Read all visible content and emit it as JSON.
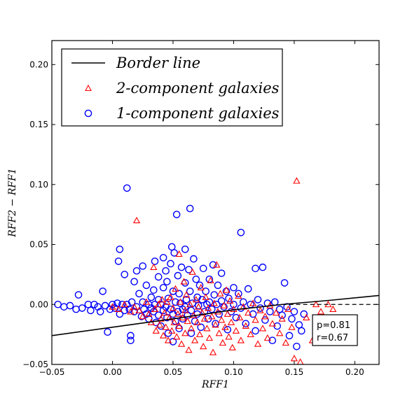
{
  "chart_data": {
    "type": "scatter",
    "xlabel": "RFF1",
    "ylabel": "RFF2 − RFF1",
    "xlim": [
      -0.05,
      0.22
    ],
    "ylim": [
      -0.05,
      0.22
    ],
    "xticks": [
      "−0.05",
      "0.00",
      "0.05",
      "0.10",
      "0.15",
      "0.20"
    ],
    "xtick_values": [
      -0.05,
      0.0,
      0.05,
      0.1,
      0.15,
      0.2
    ],
    "yticks": [
      "−0.05",
      "0.00",
      "0.05",
      "0.10",
      "0.15",
      "0.20"
    ],
    "ytick_values": [
      -0.05,
      0.0,
      0.05,
      0.1,
      0.15,
      0.2
    ],
    "grid": false,
    "legend_position": "top-left",
    "legend": [
      {
        "label": "Border line",
        "marker": "line",
        "color": "#000000"
      },
      {
        "label": "2-component galaxies",
        "marker": "triangle",
        "color": "#ff0000"
      },
      {
        "label": "1-component galaxies",
        "marker": "circle",
        "color": "#0000ff"
      }
    ],
    "border_line": {
      "color": "#000000",
      "x": [
        -0.05,
        0.0,
        0.05,
        0.1,
        0.14,
        0.18,
        0.22
      ],
      "y": [
        -0.026,
        -0.019,
        -0.012,
        -0.0045,
        0.0,
        0.0035,
        0.0075
      ]
    },
    "dashed_line": {
      "color": "#000000",
      "x": [
        0.14,
        0.22
      ],
      "y": [
        0.0,
        0.0
      ]
    },
    "series": [
      {
        "name": "1-component galaxies",
        "marker": "circle",
        "color": "#0000ff",
        "points": [
          [
            -0.045,
            0.0
          ],
          [
            -0.04,
            -0.002
          ],
          [
            -0.035,
            -0.001
          ],
          [
            -0.03,
            -0.004
          ],
          [
            -0.028,
            0.008
          ],
          [
            -0.025,
            -0.003
          ],
          [
            -0.02,
            0.0
          ],
          [
            -0.018,
            -0.005
          ],
          [
            -0.015,
            0.0
          ],
          [
            -0.012,
            -0.002
          ],
          [
            -0.01,
            -0.006
          ],
          [
            -0.008,
            0.011
          ],
          [
            -0.006,
            -0.001
          ],
          [
            -0.004,
            -0.023
          ],
          [
            -0.002,
            -0.004
          ],
          [
            0.0,
            0.0
          ],
          [
            0.002,
            -0.003
          ],
          [
            0.004,
            0.001
          ],
          [
            0.005,
            0.036
          ],
          [
            0.006,
            0.046
          ],
          [
            0.006,
            -0.008
          ],
          [
            0.008,
            0.0
          ],
          [
            0.01,
            0.025
          ],
          [
            0.01,
            -0.005
          ],
          [
            0.012,
            0.097
          ],
          [
            0.012,
            0.0
          ],
          [
            0.014,
            -0.004
          ],
          [
            0.015,
            -0.03
          ],
          [
            0.015,
            -0.026
          ],
          [
            0.016,
            0.002
          ],
          [
            0.018,
            0.019
          ],
          [
            0.018,
            -0.006
          ],
          [
            0.02,
            0.028
          ],
          [
            0.02,
            -0.002
          ],
          [
            0.022,
            0.009
          ],
          [
            0.024,
            -0.01
          ],
          [
            0.025,
            0.032
          ],
          [
            0.025,
            0.002
          ],
          [
            0.026,
            -0.004
          ],
          [
            0.028,
            0.016
          ],
          [
            0.028,
            -0.008
          ],
          [
            0.03,
            0.0
          ],
          [
            0.03,
            -0.012
          ],
          [
            0.032,
            0.006
          ],
          [
            0.032,
            -0.003
          ],
          [
            0.034,
            0.012
          ],
          [
            0.034,
            -0.006
          ],
          [
            0.035,
            0.036
          ],
          [
            0.035,
            0.0
          ],
          [
            0.036,
            -0.015
          ],
          [
            0.038,
            0.023
          ],
          [
            0.038,
            0.004
          ],
          [
            0.038,
            -0.009
          ],
          [
            0.04,
            0.0
          ],
          [
            0.04,
            -0.018
          ],
          [
            0.042,
            0.039
          ],
          [
            0.042,
            0.014
          ],
          [
            0.042,
            -0.005
          ],
          [
            0.044,
            0.028
          ],
          [
            0.044,
            -0.002
          ],
          [
            0.045,
            0.019
          ],
          [
            0.045,
            -0.011
          ],
          [
            0.046,
            0.005
          ],
          [
            0.046,
            -0.024
          ],
          [
            0.048,
            0.034
          ],
          [
            0.048,
            -0.004
          ],
          [
            0.049,
            0.048
          ],
          [
            0.05,
            0.011
          ],
          [
            0.05,
            -0.008
          ],
          [
            0.05,
            -0.031
          ],
          [
            0.051,
            0.043
          ],
          [
            0.052,
            0.002
          ],
          [
            0.052,
            -0.014
          ],
          [
            0.053,
            0.075
          ],
          [
            0.054,
            0.024
          ],
          [
            0.054,
            -0.006
          ],
          [
            0.055,
            0.009
          ],
          [
            0.055,
            -0.02
          ],
          [
            0.056,
            0.001
          ],
          [
            0.057,
            0.031
          ],
          [
            0.058,
            -0.004
          ],
          [
            0.058,
            -0.012
          ],
          [
            0.06,
            0.046
          ],
          [
            0.06,
            0.018
          ],
          [
            0.06,
            -0.002
          ],
          [
            0.061,
            0.004
          ],
          [
            0.062,
            -0.009
          ],
          [
            0.063,
            0.029
          ],
          [
            0.064,
            0.08
          ],
          [
            0.064,
            0.011
          ],
          [
            0.065,
            -0.005
          ],
          [
            0.065,
            -0.024
          ],
          [
            0.066,
            0.001
          ],
          [
            0.067,
            0.038
          ],
          [
            0.068,
            -0.014
          ],
          [
            0.069,
            0.021
          ],
          [
            0.07,
            0.006
          ],
          [
            0.07,
            -0.008
          ],
          [
            0.071,
            -0.001
          ],
          [
            0.072,
            0.016
          ],
          [
            0.073,
            -0.019
          ],
          [
            0.074,
            0.004
          ],
          [
            0.075,
            0.03
          ],
          [
            0.076,
            -0.006
          ],
          [
            0.077,
            0.011
          ],
          [
            0.078,
            0.0
          ],
          [
            0.079,
            -0.012
          ],
          [
            0.08,
            0.021
          ],
          [
            0.08,
            0.002
          ],
          [
            0.082,
            -0.004
          ],
          [
            0.083,
            0.033
          ],
          [
            0.084,
            0.008
          ],
          [
            0.085,
            -0.016
          ],
          [
            0.086,
            0.0
          ],
          [
            0.087,
            0.016
          ],
          [
            0.088,
            -0.008
          ],
          [
            0.09,
            0.026
          ],
          [
            0.09,
            0.003
          ],
          [
            0.092,
            -0.002
          ],
          [
            0.094,
            0.011
          ],
          [
            0.095,
            -0.021
          ],
          [
            0.096,
            0.005
          ],
          [
            0.098,
            -0.006
          ],
          [
            0.1,
            0.014
          ],
          [
            0.1,
            0.0
          ],
          [
            0.102,
            -0.011
          ],
          [
            0.104,
            0.009
          ],
          [
            0.106,
            0.06
          ],
          [
            0.106,
            -0.003
          ],
          [
            0.108,
            0.002
          ],
          [
            0.11,
            -0.016
          ],
          [
            0.112,
            0.013
          ],
          [
            0.114,
            0.0
          ],
          [
            0.116,
            -0.008
          ],
          [
            0.118,
            0.03
          ],
          [
            0.118,
            -0.022
          ],
          [
            0.12,
            0.004
          ],
          [
            0.122,
            -0.003
          ],
          [
            0.124,
            0.031
          ],
          [
            0.126,
            -0.013
          ],
          [
            0.128,
            0.001
          ],
          [
            0.13,
            -0.006
          ],
          [
            0.132,
            -0.03
          ],
          [
            0.134,
            0.002
          ],
          [
            0.136,
            -0.018
          ],
          [
            0.138,
            -0.004
          ],
          [
            0.14,
            -0.009
          ],
          [
            0.142,
            0.018
          ],
          [
            0.144,
            -0.002
          ],
          [
            0.146,
            -0.026
          ],
          [
            0.148,
            -0.012
          ],
          [
            0.15,
            -0.006
          ],
          [
            0.152,
            -0.035
          ],
          [
            0.154,
            -0.017
          ],
          [
            0.156,
            -0.022
          ],
          [
            0.158,
            -0.008
          ]
        ]
      },
      {
        "name": "2-component galaxies",
        "marker": "triangle",
        "color": "#ff0000",
        "points": [
          [
            0.0,
            -0.002
          ],
          [
            0.005,
            -0.004
          ],
          [
            0.01,
            0.0
          ],
          [
            0.015,
            -0.006
          ],
          [
            0.018,
            -0.002
          ],
          [
            0.02,
            0.07
          ],
          [
            0.022,
            -0.005
          ],
          [
            0.025,
            -0.01
          ],
          [
            0.028,
            0.002
          ],
          [
            0.03,
            -0.008
          ],
          [
            0.032,
            -0.015
          ],
          [
            0.034,
            0.031
          ],
          [
            0.035,
            -0.004
          ],
          [
            0.036,
            -0.022
          ],
          [
            0.038,
            0.0
          ],
          [
            0.039,
            -0.017
          ],
          [
            0.04,
            -0.012
          ],
          [
            0.041,
            0.004
          ],
          [
            0.042,
            -0.026
          ],
          [
            0.043,
            -0.007
          ],
          [
            0.044,
            -0.019
          ],
          [
            0.045,
            0.002
          ],
          [
            0.046,
            -0.03
          ],
          [
            0.047,
            -0.011
          ],
          [
            0.048,
            0.006
          ],
          [
            0.049,
            -0.022
          ],
          [
            0.05,
            -0.003
          ],
          [
            0.051,
            -0.015
          ],
          [
            0.052,
            0.013
          ],
          [
            0.053,
            -0.027
          ],
          [
            0.054,
            -0.008
          ],
          [
            0.055,
            0.042
          ],
          [
            0.055,
            -0.018
          ],
          [
            0.056,
            0.002
          ],
          [
            0.057,
            -0.033
          ],
          [
            0.058,
            -0.011
          ],
          [
            0.059,
            0.019
          ],
          [
            0.06,
            -0.005
          ],
          [
            0.06,
            -0.024
          ],
          [
            0.061,
            0.008
          ],
          [
            0.062,
            -0.014
          ],
          [
            0.063,
            -0.038
          ],
          [
            0.064,
            0.0
          ],
          [
            0.065,
            -0.02
          ],
          [
            0.066,
            0.027
          ],
          [
            0.067,
            -0.009
          ],
          [
            0.068,
            -0.03
          ],
          [
            0.069,
            0.004
          ],
          [
            0.07,
            -0.015
          ],
          [
            0.071,
            -0.002
          ],
          [
            0.072,
            -0.025
          ],
          [
            0.073,
            0.014
          ],
          [
            0.074,
            -0.007
          ],
          [
            0.075,
            -0.035
          ],
          [
            0.076,
            -0.012
          ],
          [
            0.077,
            0.006
          ],
          [
            0.078,
            -0.02
          ],
          [
            0.079,
            -0.003
          ],
          [
            0.08,
            -0.028
          ],
          [
            0.081,
            0.02
          ],
          [
            0.082,
            -0.01
          ],
          [
            0.083,
            -0.04
          ],
          [
            0.084,
            0.001
          ],
          [
            0.085,
            -0.017
          ],
          [
            0.086,
            0.033
          ],
          [
            0.087,
            -0.006
          ],
          [
            0.088,
            -0.024
          ],
          [
            0.089,
            0.009
          ],
          [
            0.09,
            -0.013
          ],
          [
            0.091,
            -0.032
          ],
          [
            0.092,
            -0.001
          ],
          [
            0.093,
            -0.019
          ],
          [
            0.094,
            0.012
          ],
          [
            0.095,
            -0.008
          ],
          [
            0.096,
            -0.027
          ],
          [
            0.097,
            0.003
          ],
          [
            0.098,
            -0.015
          ],
          [
            0.099,
            -0.036
          ],
          [
            0.1,
            -0.004
          ],
          [
            0.102,
            -0.022
          ],
          [
            0.104,
            0.007
          ],
          [
            0.105,
            -0.011
          ],
          [
            0.106,
            -0.03
          ],
          [
            0.108,
            -0.002
          ],
          [
            0.11,
            -0.018
          ],
          [
            0.112,
            -0.007
          ],
          [
            0.114,
            -0.025
          ],
          [
            0.116,
            0.001
          ],
          [
            0.118,
            -0.013
          ],
          [
            0.12,
            -0.033
          ],
          [
            0.122,
            -0.005
          ],
          [
            0.124,
            -0.02
          ],
          [
            0.126,
            -0.01
          ],
          [
            0.128,
            -0.028
          ],
          [
            0.13,
            -0.001
          ],
          [
            0.132,
            -0.016
          ],
          [
            0.135,
            -0.007
          ],
          [
            0.138,
            -0.024
          ],
          [
            0.14,
            -0.012
          ],
          [
            0.143,
            -0.032
          ],
          [
            0.145,
            -0.004
          ],
          [
            0.148,
            -0.019
          ],
          [
            0.15,
            -0.045
          ],
          [
            0.152,
            0.103
          ],
          [
            0.155,
            -0.048
          ],
          [
            0.16,
            -0.011
          ],
          [
            0.165,
            -0.03
          ],
          [
            0.168,
            0.0
          ],
          [
            0.172,
            -0.006
          ],
          [
            0.175,
            -0.015
          ],
          [
            0.178,
            0.0
          ],
          [
            0.182,
            -0.004
          ]
        ]
      }
    ],
    "annotation": {
      "lines": [
        "p=0.81",
        "r=0.67"
      ]
    }
  }
}
